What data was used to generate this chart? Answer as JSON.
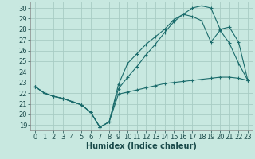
{
  "title": "",
  "xlabel": "Humidex (Indice chaleur)",
  "ylabel": "",
  "background_color": "#c8e8e0",
  "grid_color": "#a8ccc4",
  "line_color": "#1a6b6b",
  "xlim": [
    -0.5,
    23.5
  ],
  "ylim": [
    18.5,
    30.6
  ],
  "xticks": [
    0,
    1,
    2,
    3,
    4,
    5,
    6,
    7,
    8,
    9,
    10,
    11,
    12,
    13,
    14,
    15,
    16,
    17,
    18,
    19,
    20,
    21,
    22,
    23
  ],
  "yticks": [
    19,
    20,
    21,
    22,
    23,
    24,
    25,
    26,
    27,
    28,
    29,
    30
  ],
  "line1_x": [
    0,
    1,
    2,
    3,
    4,
    5,
    6,
    7,
    8,
    9,
    10,
    11,
    12,
    13,
    14,
    15,
    16,
    17,
    18,
    19,
    20,
    21,
    22,
    23
  ],
  "line1_y": [
    22.6,
    22.0,
    21.7,
    21.5,
    21.2,
    20.9,
    20.2,
    18.8,
    19.3,
    21.9,
    22.1,
    22.3,
    22.5,
    22.7,
    22.9,
    23.0,
    23.1,
    23.2,
    23.3,
    23.4,
    23.5,
    23.5,
    23.4,
    23.2
  ],
  "line2_x": [
    0,
    1,
    2,
    3,
    4,
    5,
    6,
    7,
    8,
    9,
    10,
    11,
    12,
    13,
    14,
    15,
    16,
    17,
    18,
    19,
    20,
    21,
    22,
    23
  ],
  "line2_y": [
    22.6,
    22.0,
    21.7,
    21.5,
    21.2,
    20.9,
    20.2,
    18.8,
    19.3,
    22.8,
    24.8,
    25.7,
    26.6,
    27.3,
    28.0,
    28.9,
    29.4,
    30.0,
    30.2,
    30.0,
    28.0,
    28.2,
    26.8,
    23.2
  ],
  "line3_x": [
    0,
    1,
    2,
    3,
    4,
    5,
    6,
    7,
    8,
    9,
    10,
    11,
    12,
    13,
    14,
    15,
    16,
    17,
    18,
    19,
    20,
    21,
    22,
    23
  ],
  "line3_y": [
    22.6,
    22.0,
    21.7,
    21.5,
    21.2,
    20.9,
    20.2,
    18.8,
    19.3,
    22.4,
    23.5,
    24.5,
    25.6,
    26.6,
    27.7,
    28.7,
    29.4,
    29.2,
    28.8,
    26.8,
    27.9,
    26.7,
    24.8,
    23.2
  ],
  "xlabel_fontsize": 7,
  "tick_fontsize": 6
}
